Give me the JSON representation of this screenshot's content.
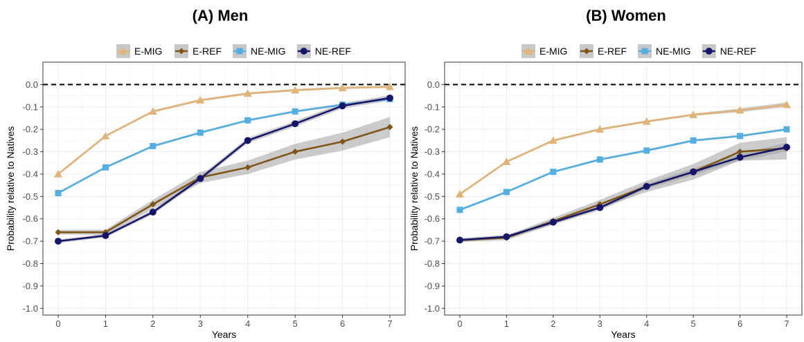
{
  "chart_data": [
    {
      "type": "line",
      "title": "(A) Men",
      "xlabel": "Years",
      "ylabel": "Probability relative to Natives",
      "xlim": [
        0,
        7
      ],
      "ylim": [
        -1.0,
        0.0
      ],
      "x": [
        0,
        1,
        2,
        3,
        4,
        5,
        6,
        7
      ],
      "x_ticks": [
        "0",
        "1",
        "2",
        "3",
        "4",
        "5",
        "6",
        "7"
      ],
      "y_ticks": [
        "0.0",
        "-0.1",
        "-0.2",
        "-0.3",
        "-0.4",
        "-0.5",
        "-0.6",
        "-0.7",
        "-0.8",
        "-0.9",
        "-1.0"
      ],
      "y_tick_values": [
        0.0,
        -0.1,
        -0.2,
        -0.3,
        -0.4,
        -0.5,
        -0.6,
        -0.7,
        -0.8,
        -0.9,
        -1.0
      ],
      "reference_line": 0.0,
      "grid": true,
      "legend_position": "top",
      "series": [
        {
          "name": "E-MIG",
          "color": "#e0b478",
          "marker": "triangle",
          "values": [
            -0.4,
            -0.23,
            -0.12,
            -0.07,
            -0.04,
            -0.025,
            -0.015,
            -0.01
          ],
          "ci": [
            0.005,
            0.005,
            0.005,
            0.005,
            0.005,
            0.005,
            0.005,
            0.005
          ]
        },
        {
          "name": "E-REF",
          "color": "#7f5418",
          "marker": "diamond",
          "values": [
            -0.66,
            -0.66,
            -0.535,
            -0.415,
            -0.37,
            -0.3,
            -0.255,
            -0.19
          ],
          "ci": [
            0.01,
            0.012,
            0.02,
            0.025,
            0.03,
            0.035,
            0.04,
            0.045
          ]
        },
        {
          "name": "NE-MIG",
          "color": "#55aee0",
          "marker": "square",
          "values": [
            -0.485,
            -0.37,
            -0.275,
            -0.215,
            -0.16,
            -0.12,
            -0.09,
            -0.065
          ],
          "ci": [
            0.005,
            0.005,
            0.005,
            0.005,
            0.005,
            0.005,
            0.005,
            0.005
          ]
        },
        {
          "name": "NE-REF",
          "color": "#15166a",
          "marker": "circle",
          "values": [
            -0.7,
            -0.675,
            -0.57,
            -0.42,
            -0.25,
            -0.175,
            -0.095,
            -0.06
          ],
          "ci": [
            0.008,
            0.008,
            0.01,
            0.012,
            0.012,
            0.012,
            0.012,
            0.012
          ]
        }
      ]
    },
    {
      "type": "line",
      "title": "(B) Women",
      "xlabel": "Years",
      "ylabel": "Probability relative to Natives",
      "xlim": [
        0,
        7
      ],
      "ylim": [
        -1.0,
        0.0
      ],
      "x": [
        0,
        1,
        2,
        3,
        4,
        5,
        6,
        7
      ],
      "x_ticks": [
        "0",
        "1",
        "2",
        "3",
        "4",
        "5",
        "6",
        "7"
      ],
      "y_ticks": [
        "0.0",
        "-0.1",
        "-0.2",
        "-0.3",
        "-0.4",
        "-0.5",
        "-0.6",
        "-0.7",
        "-0.8",
        "-0.9",
        "-1.0"
      ],
      "y_tick_values": [
        0.0,
        -0.1,
        -0.2,
        -0.3,
        -0.4,
        -0.5,
        -0.6,
        -0.7,
        -0.8,
        -0.9,
        -1.0
      ],
      "reference_line": 0.0,
      "grid": true,
      "legend_position": "top",
      "series": [
        {
          "name": "E-MIG",
          "color": "#e0b478",
          "marker": "triangle",
          "values": [
            -0.49,
            -0.345,
            -0.25,
            -0.2,
            -0.165,
            -0.135,
            -0.115,
            -0.09
          ],
          "ci": [
            0.005,
            0.005,
            0.005,
            0.005,
            0.005,
            0.005,
            0.008,
            0.01
          ]
        },
        {
          "name": "E-REF",
          "color": "#7f5418",
          "marker": "diamond",
          "values": [
            -0.695,
            -0.685,
            -0.61,
            -0.535,
            -0.455,
            -0.39,
            -0.3,
            -0.285
          ],
          "ci": [
            0.008,
            0.01,
            0.015,
            0.02,
            0.025,
            0.035,
            0.04,
            0.05
          ]
        },
        {
          "name": "NE-MIG",
          "color": "#55aee0",
          "marker": "square",
          "values": [
            -0.56,
            -0.48,
            -0.39,
            -0.335,
            -0.295,
            -0.25,
            -0.23,
            -0.2
          ],
          "ci": [
            0.005,
            0.005,
            0.005,
            0.005,
            0.005,
            0.005,
            0.005,
            0.005
          ]
        },
        {
          "name": "NE-REF",
          "color": "#15166a",
          "marker": "circle",
          "values": [
            -0.695,
            -0.68,
            -0.615,
            -0.55,
            -0.455,
            -0.39,
            -0.325,
            -0.28
          ],
          "ci": [
            0.008,
            0.008,
            0.01,
            0.012,
            0.012,
            0.015,
            0.015,
            0.02
          ]
        }
      ]
    }
  ]
}
